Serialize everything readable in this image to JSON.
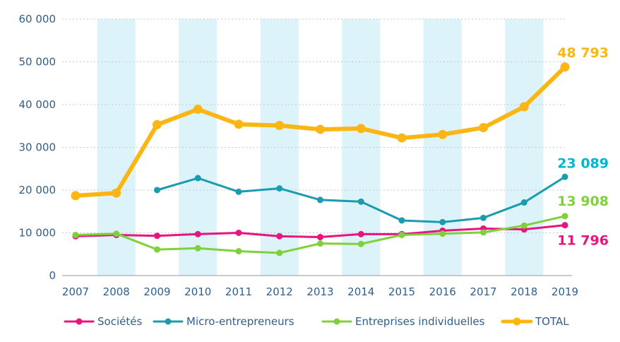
{
  "chart_data": {
    "type": "line",
    "title": "",
    "xlabel": "",
    "ylabel": "",
    "ylim": [
      0,
      60000
    ],
    "grid": true,
    "legend_position": "bottom",
    "x": [
      "2007",
      "2008",
      "2009",
      "2010",
      "2011",
      "2012",
      "2013",
      "2014",
      "2015",
      "2016",
      "2017",
      "2018",
      "2019"
    ],
    "y_ticks": [
      {
        "value": 0,
        "label": "0"
      },
      {
        "value": 10000,
        "label": "10 000"
      },
      {
        "value": 20000,
        "label": "20 000"
      },
      {
        "value": 30000,
        "label": "30 000"
      },
      {
        "value": 40000,
        "label": "40 000"
      },
      {
        "value": 50000,
        "label": "50 000"
      },
      {
        "value": 60000,
        "label": "60 000"
      }
    ],
    "shaded_years": [
      "2008",
      "2010",
      "2012",
      "2014",
      "2016",
      "2018"
    ],
    "shade_color": "#dcf3f9",
    "series": [
      {
        "name": "Sociétés",
        "color": "#e8147f",
        "values": [
          9200,
          9500,
          9300,
          9700,
          10000,
          9200,
          9000,
          9700,
          9700,
          10500,
          11000,
          10800,
          11796
        ],
        "end_label": "11 796"
      },
      {
        "name": "Micro-entrepreneurs",
        "color": "#1a9bae",
        "values": [
          null,
          null,
          20000,
          22800,
          19600,
          20400,
          17700,
          17300,
          12900,
          12500,
          13500,
          17100,
          23089
        ],
        "end_label": "23 089"
      },
      {
        "name": "Entreprises individuelles",
        "color": "#7fd13b",
        "values": [
          9500,
          9800,
          6100,
          6400,
          5700,
          5300,
          7500,
          7400,
          9500,
          9800,
          10100,
          11700,
          13908
        ],
        "end_label": "13 908"
      },
      {
        "name": "TOTAL",
        "color": "#fbb613",
        "values": [
          18700,
          19300,
          35300,
          38900,
          35400,
          35100,
          34200,
          34400,
          32200,
          33000,
          34600,
          39500,
          48793
        ],
        "end_label": "48 793"
      }
    ],
    "end_label_colors": {
      "Sociétés": "#e8147f",
      "Micro-entrepreneurs": "#00b7d0",
      "Entreprises individuelles": "#7fd13b",
      "TOTAL": "#fbb613"
    }
  }
}
